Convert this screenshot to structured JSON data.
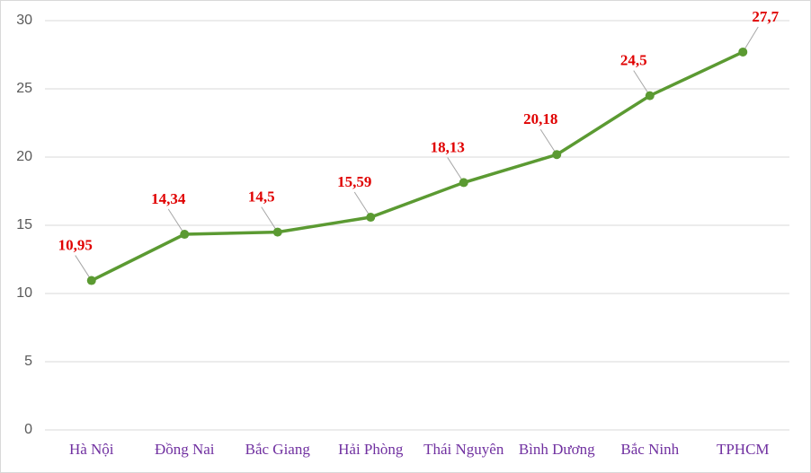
{
  "chart_data": {
    "type": "line",
    "categories": [
      "Hà Nội",
      "Đồng Nai",
      "Bắc Giang",
      "Hải Phòng",
      "Thái Nguyên",
      "Bình Dương",
      "Bắc Ninh",
      "TPHCM"
    ],
    "series": [
      {
        "color": "#5b9a32",
        "values": [
          10.95,
          14.34,
          14.5,
          15.59,
          18.13,
          20.18,
          24.5,
          27.7
        ],
        "value_labels": [
          "10,95",
          "14,34",
          "14,5",
          "15,59",
          "18,13",
          "20,18",
          "24,5",
          "27,7"
        ]
      }
    ],
    "ylim": [
      0,
      30
    ],
    "yticks": [
      0,
      5,
      10,
      15,
      20,
      25,
      30
    ],
    "grid": true
  }
}
